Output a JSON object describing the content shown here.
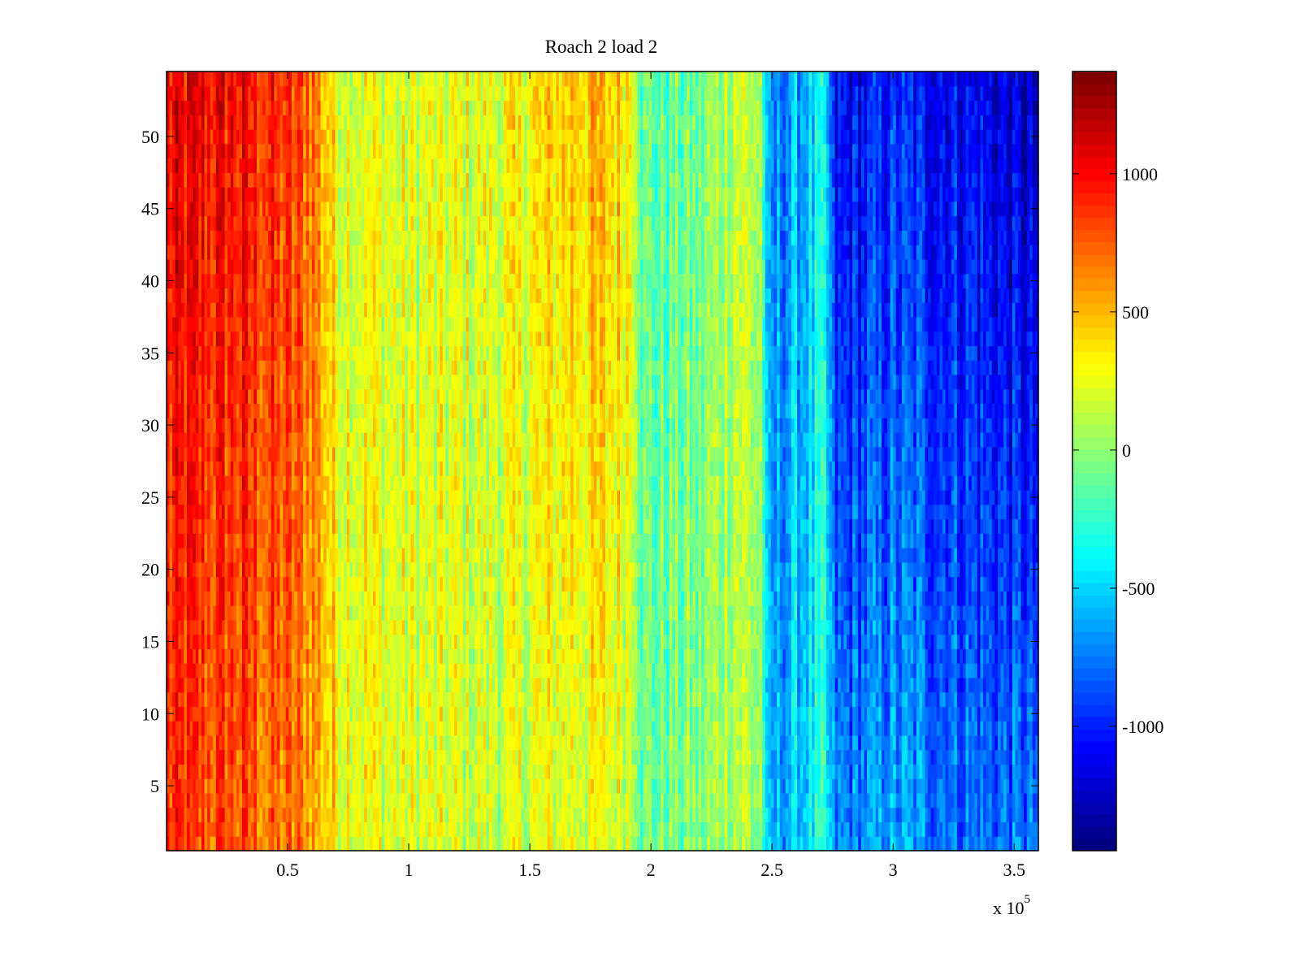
{
  "chart_data": {
    "type": "heatmap",
    "title": "Roach 2 load 2",
    "xlabel": "",
    "ylabel": "",
    "x_multiplier_label": "x 10",
    "x_multiplier_exponent": "5",
    "xlim": [
      0,
      3.6
    ],
    "ylim": [
      0.5,
      54.5
    ],
    "rows": 54,
    "x_ticks": [
      "0.5",
      "1",
      "1.5",
      "2",
      "2.5",
      "3",
      "3.5"
    ],
    "x_tick_values": [
      0.5,
      1,
      1.5,
      2,
      2.5,
      3,
      3.5
    ],
    "y_ticks": [
      "5",
      "10",
      "15",
      "20",
      "25",
      "30",
      "35",
      "40",
      "45",
      "50"
    ],
    "y_tick_values": [
      5,
      10,
      15,
      20,
      25,
      30,
      35,
      40,
      45,
      50
    ],
    "colorbar": {
      "colormap": "jet",
      "clim": [
        -1450,
        1370
      ],
      "ticks": [
        "-1000",
        "-500",
        "0",
        "500",
        "1000"
      ],
      "tick_values": [
        -1000,
        -500,
        0,
        500,
        1000
      ]
    },
    "profile": [
      {
        "x": 0.0,
        "top": 1000,
        "bottom": 800
      },
      {
        "x": 0.3,
        "top": 1000,
        "bottom": 750
      },
      {
        "x": 0.6,
        "top": 750,
        "bottom": 600
      },
      {
        "x": 0.7,
        "top": 300,
        "bottom": 350
      },
      {
        "x": 1.0,
        "top": 200,
        "bottom": 200
      },
      {
        "x": 1.4,
        "top": 250,
        "bottom": 150
      },
      {
        "x": 1.7,
        "top": 500,
        "bottom": 250
      },
      {
        "x": 1.93,
        "top": 400,
        "bottom": 200
      },
      {
        "x": 1.97,
        "top": -150,
        "bottom": -100
      },
      {
        "x": 2.2,
        "top": -100,
        "bottom": -50
      },
      {
        "x": 2.35,
        "top": 200,
        "bottom": 150
      },
      {
        "x": 2.46,
        "top": 50,
        "bottom": 0
      },
      {
        "x": 2.48,
        "top": -800,
        "bottom": -700
      },
      {
        "x": 2.72,
        "top": -450,
        "bottom": -350
      },
      {
        "x": 2.76,
        "top": -1150,
        "bottom": -750
      },
      {
        "x": 3.0,
        "top": -1000,
        "bottom": -650
      },
      {
        "x": 3.3,
        "top": -1100,
        "bottom": -750
      },
      {
        "x": 3.6,
        "top": -1300,
        "bottom": -800
      }
    ],
    "noise_amplitude": 280
  }
}
